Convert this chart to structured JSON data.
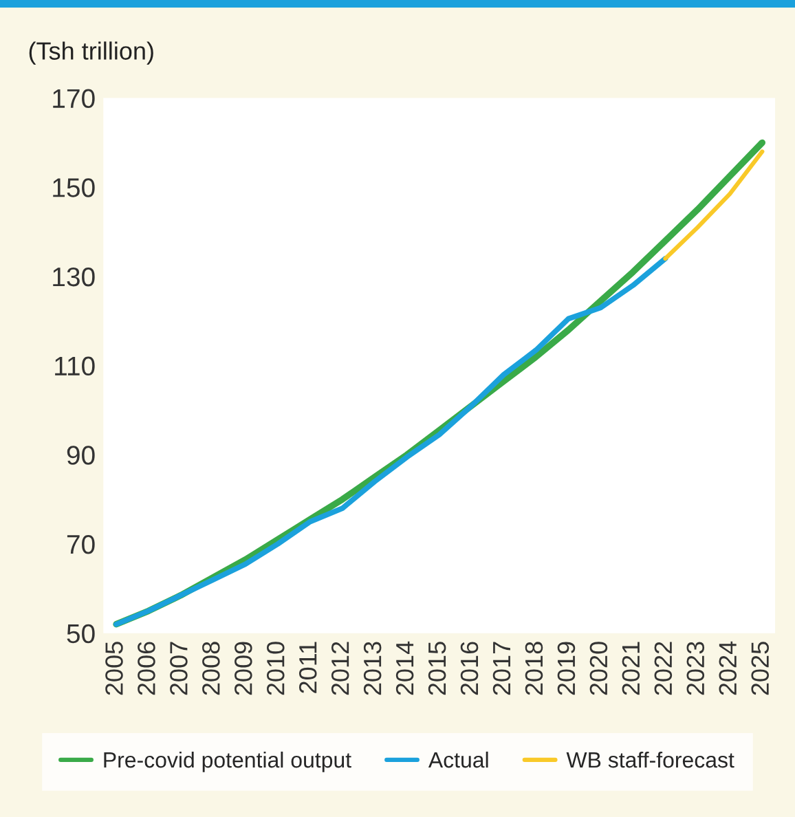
{
  "chart_data": {
    "type": "line",
    "ylabel": "(Tsh trillion)",
    "categories": [
      "2005",
      "2006",
      "2007",
      "2008",
      "2009",
      "2010",
      "2011",
      "2012",
      "2013",
      "2014",
      "2015",
      "2016",
      "2017",
      "2018",
      "2019",
      "2020",
      "2021",
      "2022",
      "2023",
      "2024",
      "2025"
    ],
    "series": [
      {
        "name": "Pre-covid potential output",
        "color": "#3aaa48",
        "values": [
          52,
          55,
          58.5,
          62.5,
          66.5,
          71,
          75.5,
          80,
          85,
          90,
          95.5,
          101,
          106.5,
          112,
          118,
          124.5,
          131,
          138,
          145,
          152.5,
          160
        ]
      },
      {
        "name": "Actual",
        "color": "#1ba1dc",
        "values": [
          52,
          55,
          58.5,
          62,
          65.5,
          70,
          75,
          78,
          84,
          89.5,
          94.5,
          101,
          108,
          113.5,
          120.5,
          123,
          128,
          134,
          null,
          null,
          null
        ]
      },
      {
        "name": "WB staff-forecast",
        "color": "#f9c928",
        "values": [
          null,
          null,
          null,
          null,
          null,
          null,
          null,
          null,
          null,
          null,
          null,
          null,
          null,
          null,
          null,
          null,
          null,
          134,
          141,
          148.5,
          158
        ]
      }
    ],
    "ylim": [
      50,
      170
    ],
    "yticks": [
      50,
      70,
      90,
      110,
      130,
      150,
      170
    ],
    "grid": false,
    "legend": "bottom"
  }
}
